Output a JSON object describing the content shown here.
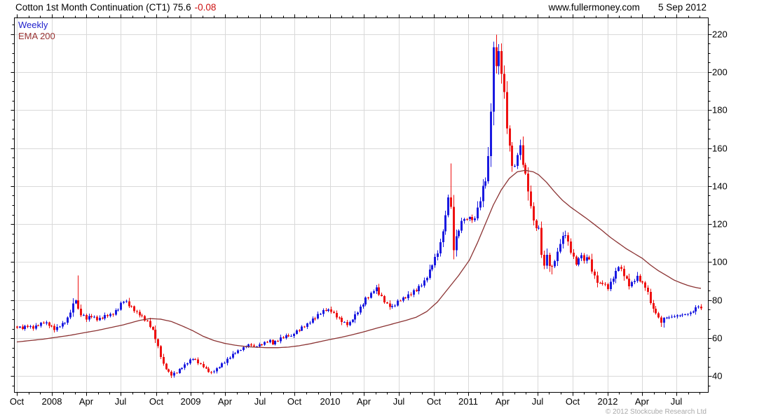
{
  "header": {
    "title": "Cotton 1st Month Continuation (CT1) 75.6",
    "change": "-0.08",
    "website": "www.fullermoney.com",
    "date": "5 Sep 2012"
  },
  "legend": {
    "series": "Weekly",
    "overlay": "EMA 200"
  },
  "footer": {
    "copyright": "© 2012 Stockcube Research Ltd"
  },
  "colors": {
    "up": "#1a1ae0",
    "down": "#ee1111",
    "ema": "#8b3333",
    "grid": "#d9d9d9",
    "axis": "#000000",
    "legend_series": "#2222cc",
    "legend_overlay": "#993333",
    "change": "#cc1111",
    "copyright": "#a9a9a9",
    "text": "#000000",
    "background": "#ffffff"
  },
  "chart_data": {
    "type": "candlestick",
    "interval": "weekly",
    "instrument": "Cotton 1st Month Continuation (CT1)",
    "last_price": 75.6,
    "change": -0.08,
    "as_of": "5 Sep 2012",
    "x_range": [
      "Oct 2007",
      "Sep 2012"
    ],
    "weeks": 258,
    "ylim": [
      31.5,
      228.5
    ],
    "y_ticks": [
      40,
      60,
      80,
      100,
      120,
      140,
      160,
      180,
      200,
      220
    ],
    "y_minor_step": 5,
    "x_tick_labels": [
      "Oct",
      "2008",
      "Apr",
      "Jul",
      "Oct",
      "2009",
      "Apr",
      "Jul",
      "Oct",
      "2010",
      "Apr",
      "Jul",
      "Oct",
      "2011",
      "Apr",
      "Jul",
      "Oct",
      "2012",
      "Apr",
      "Jul"
    ],
    "x_tick_weeks": [
      0,
      13.1,
      26.1,
      39.1,
      52.3,
      65.4,
      78.3,
      91.3,
      104.4,
      117.6,
      130.4,
      143.4,
      156.6,
      169.7,
      182.6,
      195.6,
      208.7,
      221.9,
      234.9,
      247.9
    ],
    "grid": true,
    "legend_position": "top-left",
    "close_anchors": [
      [
        0,
        66
      ],
      [
        2,
        65.3
      ],
      [
        4,
        66.5
      ],
      [
        6,
        65.2
      ],
      [
        8,
        67
      ],
      [
        10,
        68.3
      ],
      [
        12,
        67
      ],
      [
        14,
        64.8
      ],
      [
        16,
        66.5
      ],
      [
        18,
        68.5
      ],
      [
        19,
        70.5
      ],
      [
        20,
        74
      ],
      [
        21,
        78
      ],
      [
        22,
        80.5
      ],
      [
        23,
        75
      ],
      [
        24,
        72.5
      ],
      [
        26,
        70.5
      ],
      [
        28,
        71.5
      ],
      [
        30,
        69.8
      ],
      [
        32,
        71
      ],
      [
        34,
        72
      ],
      [
        36,
        73
      ],
      [
        38,
        75.5
      ],
      [
        39,
        78
      ],
      [
        40,
        80
      ],
      [
        41,
        79
      ],
      [
        43,
        76
      ],
      [
        45,
        73.5
      ],
      [
        47,
        71
      ],
      [
        49,
        68.5
      ],
      [
        51,
        64
      ],
      [
        52,
        60
      ],
      [
        53,
        55.5
      ],
      [
        54,
        50.5
      ],
      [
        55,
        46.5
      ],
      [
        56,
        44
      ],
      [
        57,
        42
      ],
      [
        58,
        40.8
      ],
      [
        59,
        41.5
      ],
      [
        60,
        42
      ],
      [
        61,
        43.5
      ],
      [
        62,
        44.5
      ],
      [
        63,
        45.8
      ],
      [
        64,
        47
      ],
      [
        65,
        48.3
      ],
      [
        66,
        49.3
      ],
      [
        67,
        48.5
      ],
      [
        68,
        47
      ],
      [
        69,
        46
      ],
      [
        70,
        45
      ],
      [
        71,
        43.8
      ],
      [
        72,
        42.5
      ],
      [
        73,
        41.8
      ],
      [
        74,
        42.8
      ],
      [
        75,
        44
      ],
      [
        76,
        45
      ],
      [
        77,
        46.3
      ],
      [
        78,
        47.5
      ],
      [
        80,
        50
      ],
      [
        82,
        52.5
      ],
      [
        84,
        54
      ],
      [
        86,
        55.8
      ],
      [
        88,
        56.5
      ],
      [
        89,
        55.2
      ],
      [
        91,
        56.5
      ],
      [
        93,
        57.5
      ],
      [
        95,
        58.8
      ],
      [
        96,
        57.2
      ],
      [
        98,
        59
      ],
      [
        100,
        60.5
      ],
      [
        102,
        61.5
      ],
      [
        103,
        60.8
      ],
      [
        104,
        62.5
      ],
      [
        106,
        64.5
      ],
      [
        108,
        66.5
      ],
      [
        110,
        68.5
      ],
      [
        112,
        71
      ],
      [
        114,
        73.5
      ],
      [
        116,
        75
      ],
      [
        118,
        74.2
      ],
      [
        120,
        71.5
      ],
      [
        122,
        69
      ],
      [
        124,
        67.5
      ],
      [
        125,
        68.2
      ],
      [
        126,
        70
      ],
      [
        128,
        74
      ],
      [
        130,
        78.5
      ],
      [
        131,
        80.5
      ],
      [
        132,
        82
      ],
      [
        133,
        83.5
      ],
      [
        134,
        85.3
      ],
      [
        135,
        86
      ],
      [
        136,
        83.5
      ],
      [
        137,
        81.5
      ],
      [
        138,
        79.5
      ],
      [
        139,
        78
      ],
      [
        140,
        77
      ],
      [
        141,
        76.5
      ],
      [
        142,
        77.5
      ],
      [
        143,
        79
      ],
      [
        144,
        80
      ],
      [
        145,
        81
      ],
      [
        146,
        81.8
      ],
      [
        147,
        82.5
      ],
      [
        148,
        83.5
      ],
      [
        150,
        85.5
      ],
      [
        151,
        86.5
      ],
      [
        152,
        88
      ],
      [
        153,
        90
      ],
      [
        154,
        92.5
      ],
      [
        155,
        95.5
      ],
      [
        156,
        99
      ],
      [
        157,
        102
      ],
      [
        158,
        105
      ],
      [
        159,
        110
      ],
      [
        160,
        117
      ],
      [
        161,
        124
      ],
      [
        162,
        135
      ],
      [
        163,
        128
      ],
      [
        164,
        107
      ],
      [
        165,
        113
      ],
      [
        166,
        117.5
      ],
      [
        167,
        121
      ],
      [
        168,
        124
      ],
      [
        169,
        122
      ],
      [
        170,
        124.5
      ],
      [
        171,
        121.5
      ],
      [
        172,
        124
      ],
      [
        173,
        128
      ],
      [
        174,
        133
      ],
      [
        175,
        139
      ],
      [
        176,
        143
      ],
      [
        177,
        155
      ],
      [
        178,
        180
      ],
      [
        179,
        211
      ],
      [
        180,
        204
      ],
      [
        181,
        209
      ],
      [
        182,
        200
      ],
      [
        183,
        188
      ],
      [
        184,
        172
      ],
      [
        185,
        160
      ],
      [
        186,
        152
      ],
      [
        187,
        150
      ],
      [
        188,
        157
      ],
      [
        189,
        160
      ],
      [
        190,
        152
      ],
      [
        191,
        146
      ],
      [
        192,
        138
      ],
      [
        193,
        129
      ],
      [
        194,
        123
      ],
      [
        195,
        117
      ],
      [
        196,
        119
      ],
      [
        197,
        103
      ],
      [
        198,
        99
      ],
      [
        199,
        103
      ],
      [
        200,
        98.5
      ],
      [
        201,
        97
      ],
      [
        202,
        101
      ],
      [
        203,
        105
      ],
      [
        204,
        110
      ],
      [
        205,
        113
      ],
      [
        206,
        114.5
      ],
      [
        207,
        110
      ],
      [
        208,
        106
      ],
      [
        209,
        102
      ],
      [
        210,
        99.5
      ],
      [
        211,
        101
      ],
      [
        212,
        104
      ],
      [
        213,
        100
      ],
      [
        214,
        103.5
      ],
      [
        215,
        101
      ],
      [
        216,
        96
      ],
      [
        217,
        92.5
      ],
      [
        218,
        90
      ],
      [
        219,
        88.5
      ],
      [
        220,
        89.5
      ],
      [
        221,
        87.5
      ],
      [
        222,
        86.3
      ],
      [
        223,
        89
      ],
      [
        224,
        92
      ],
      [
        225,
        95
      ],
      [
        226,
        97.8
      ],
      [
        227,
        96
      ],
      [
        228,
        93
      ],
      [
        229,
        90.5
      ],
      [
        230,
        88
      ],
      [
        231,
        88.8
      ],
      [
        232,
        90.5
      ],
      [
        233,
        91.8
      ],
      [
        234,
        90.2
      ],
      [
        235,
        88.5
      ],
      [
        236,
        87
      ],
      [
        237,
        84
      ],
      [
        238,
        79
      ],
      [
        239,
        75
      ],
      [
        240,
        73.5
      ],
      [
        241,
        70.5
      ],
      [
        242,
        68.5
      ],
      [
        243,
        70
      ],
      [
        244,
        71.5
      ],
      [
        245,
        70.5
      ],
      [
        246,
        72
      ],
      [
        247,
        71
      ],
      [
        248,
        72.5
      ],
      [
        249,
        71.5
      ],
      [
        250,
        72.8
      ],
      [
        251,
        72
      ],
      [
        252,
        73.5
      ],
      [
        253,
        73
      ],
      [
        254,
        74.5
      ],
      [
        255,
        75.8
      ],
      [
        256,
        77
      ],
      [
        257,
        75.6
      ]
    ],
    "ema200_anchors": [
      [
        0,
        58
      ],
      [
        10,
        59.5
      ],
      [
        20,
        61.5
      ],
      [
        25,
        62.8
      ],
      [
        30,
        64
      ],
      [
        35,
        65.5
      ],
      [
        40,
        67
      ],
      [
        46,
        69.3
      ],
      [
        50,
        70.3
      ],
      [
        54,
        70
      ],
      [
        58,
        68.8
      ],
      [
        62,
        66.5
      ],
      [
        66,
        64
      ],
      [
        70,
        61
      ],
      [
        74,
        58.8
      ],
      [
        78,
        57.3
      ],
      [
        82,
        56.3
      ],
      [
        86,
        55.6
      ],
      [
        90,
        55.2
      ],
      [
        94,
        55
      ],
      [
        98,
        55
      ],
      [
        102,
        55.3
      ],
      [
        106,
        56
      ],
      [
        110,
        57
      ],
      [
        114,
        58.2
      ],
      [
        118,
        59.4
      ],
      [
        122,
        60.5
      ],
      [
        126,
        61.8
      ],
      [
        130,
        63.2
      ],
      [
        134,
        64.8
      ],
      [
        138,
        66.3
      ],
      [
        142,
        67.8
      ],
      [
        146,
        69.3
      ],
      [
        150,
        71
      ],
      [
        154,
        74
      ],
      [
        158,
        79
      ],
      [
        162,
        86
      ],
      [
        166,
        93
      ],
      [
        170,
        101
      ],
      [
        173,
        110
      ],
      [
        176,
        120
      ],
      [
        179,
        130
      ],
      [
        182,
        138
      ],
      [
        185,
        144
      ],
      [
        188,
        147.5
      ],
      [
        191,
        148.3
      ],
      [
        194,
        147.5
      ],
      [
        196,
        146
      ],
      [
        199,
        142
      ],
      [
        202,
        137
      ],
      [
        205,
        132.5
      ],
      [
        208,
        129
      ],
      [
        211,
        126
      ],
      [
        214,
        123
      ],
      [
        217,
        119.8
      ],
      [
        220,
        116.5
      ],
      [
        223,
        113
      ],
      [
        226,
        110
      ],
      [
        229,
        107
      ],
      [
        232,
        104.5
      ],
      [
        235,
        102
      ],
      [
        238,
        98.5
      ],
      [
        241,
        95.5
      ],
      [
        244,
        93
      ],
      [
        247,
        90.5
      ],
      [
        250,
        88.8
      ],
      [
        252,
        87.8
      ],
      [
        254,
        87
      ],
      [
        256,
        86.4
      ],
      [
        257,
        86.2
      ]
    ],
    "wick_events": [
      {
        "week": 23,
        "high": 93
      },
      {
        "week": 58,
        "low": 39
      },
      {
        "week": 73,
        "low": 41
      },
      {
        "week": 135,
        "high": 88
      },
      {
        "week": 163,
        "high": 151.9
      },
      {
        "week": 164,
        "low": 101.5
      },
      {
        "week": 179,
        "high": 216
      },
      {
        "week": 180,
        "high": 219.7
      },
      {
        "week": 182,
        "high": 215
      },
      {
        "week": 201,
        "low": 93.5
      },
      {
        "week": 206,
        "high": 116.5
      },
      {
        "week": 242,
        "low": 66
      },
      {
        "week": 243,
        "low": 65.5
      }
    ],
    "zigzag": 0.7,
    "seed": 11
  }
}
